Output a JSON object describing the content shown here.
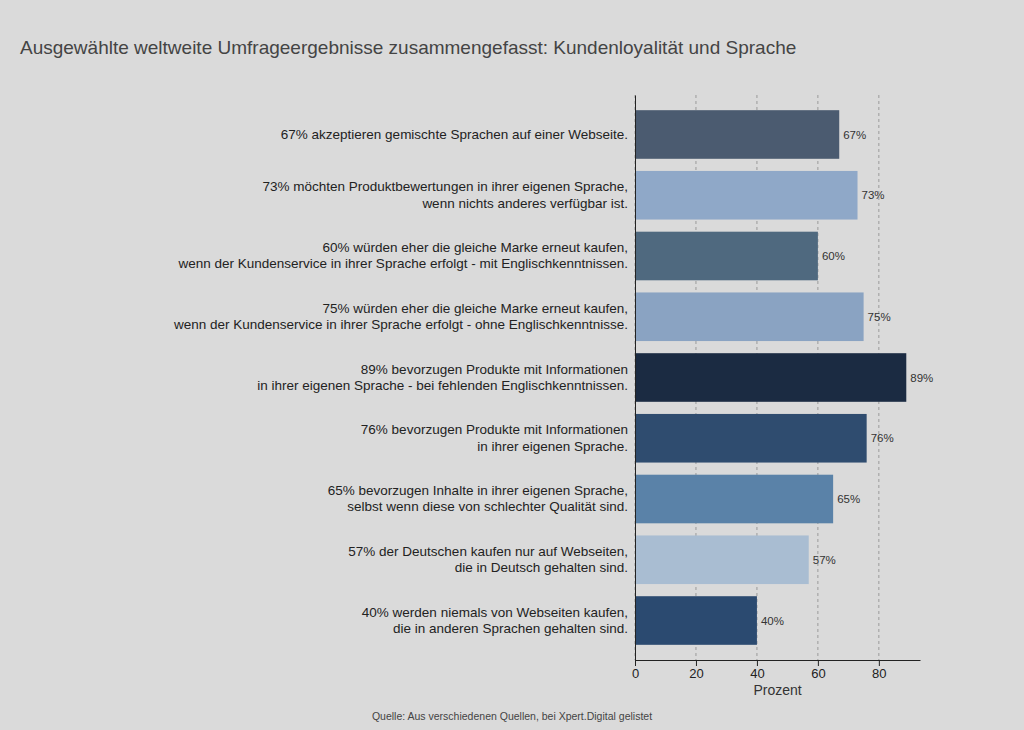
{
  "chart_data": {
    "type": "bar",
    "orientation": "horizontal",
    "title": "Ausgewählte weltweite Umfrageergebnisse zusammengefasst: Kundenloyalität und Sprache",
    "xlabel": "Prozent",
    "source": "Quelle: Aus verschiedenen Quellen, bei Xpert.Digital gelistet",
    "categories": [
      "67% akzeptieren gemischte Sprachen auf einer Webseite.",
      "73% möchten Produktbewertungen in ihrer eigenen Sprache,\nwenn nichts anderes verfügbar ist.",
      "60% würden eher die gleiche Marke erneut kaufen,\nwenn der Kundenservice in ihrer Sprache erfolgt - mit Englischkenntnissen.",
      "75% würden eher die gleiche Marke erneut kaufen,\nwenn der Kundenservice in ihrer Sprache erfolgt - ohne Englischkenntnisse.",
      "89% bevorzugen Produkte mit Informationen\nin ihrer eigenen Sprache - bei fehlenden Englischkenntnissen.",
      "76% bevorzugen Produkte mit Informationen\nin ihrer eigenen Sprache.",
      "65% bevorzugen Inhalte in ihrer eigenen Sprache,\nselbst wenn diese von schlechter Qualität sind.",
      "57% der Deutschen kaufen nur auf Webseiten,\ndie in Deutsch gehalten sind.",
      "40% werden niemals von Webseiten kaufen,\ndie in anderen Sprachen gehalten sind."
    ],
    "values": [
      67,
      73,
      60,
      75,
      89,
      76,
      65,
      57,
      40
    ],
    "value_labels": [
      "67%",
      "73%",
      "60%",
      "75%",
      "89%",
      "76%",
      "65%",
      "57%",
      "40%"
    ],
    "colors": [
      "#4b5b70",
      "#8fa8c8",
      "#4f697f",
      "#8aa3c2",
      "#1b2b42",
      "#2f4c6f",
      "#5a82a8",
      "#a9bdd2",
      "#2b4a70"
    ],
    "xlim": [
      0,
      93.5
    ],
    "xticks": [
      0,
      20,
      40,
      60,
      80
    ],
    "grid": true,
    "data_labels": true
  }
}
